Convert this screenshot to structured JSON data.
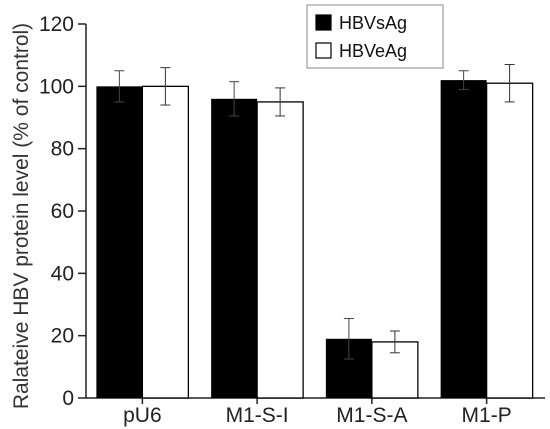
{
  "chart_data": {
    "type": "bar",
    "title": "",
    "xlabel": "",
    "ylabel": "Ralateive HBV protein level (% of control)",
    "ylim": [
      0,
      120
    ],
    "yticks": [
      0,
      20,
      40,
      60,
      80,
      100,
      120
    ],
    "categories": [
      "pU6",
      "M1-S-I",
      "M1-S-A",
      "M1-P"
    ],
    "series": [
      {
        "name": "HBVsAg",
        "color": "#000000",
        "fill": "solid",
        "values": [
          100,
          96,
          19,
          102
        ],
        "errors": [
          5,
          5.5,
          6.5,
          3
        ]
      },
      {
        "name": "HBVeAg",
        "color": "#ffffff",
        "fill": "hollow",
        "values": [
          100,
          95,
          18,
          101
        ],
        "errors": [
          6,
          4.5,
          3.5,
          6
        ]
      }
    ],
    "legend_position": "top-right",
    "grid": false
  }
}
